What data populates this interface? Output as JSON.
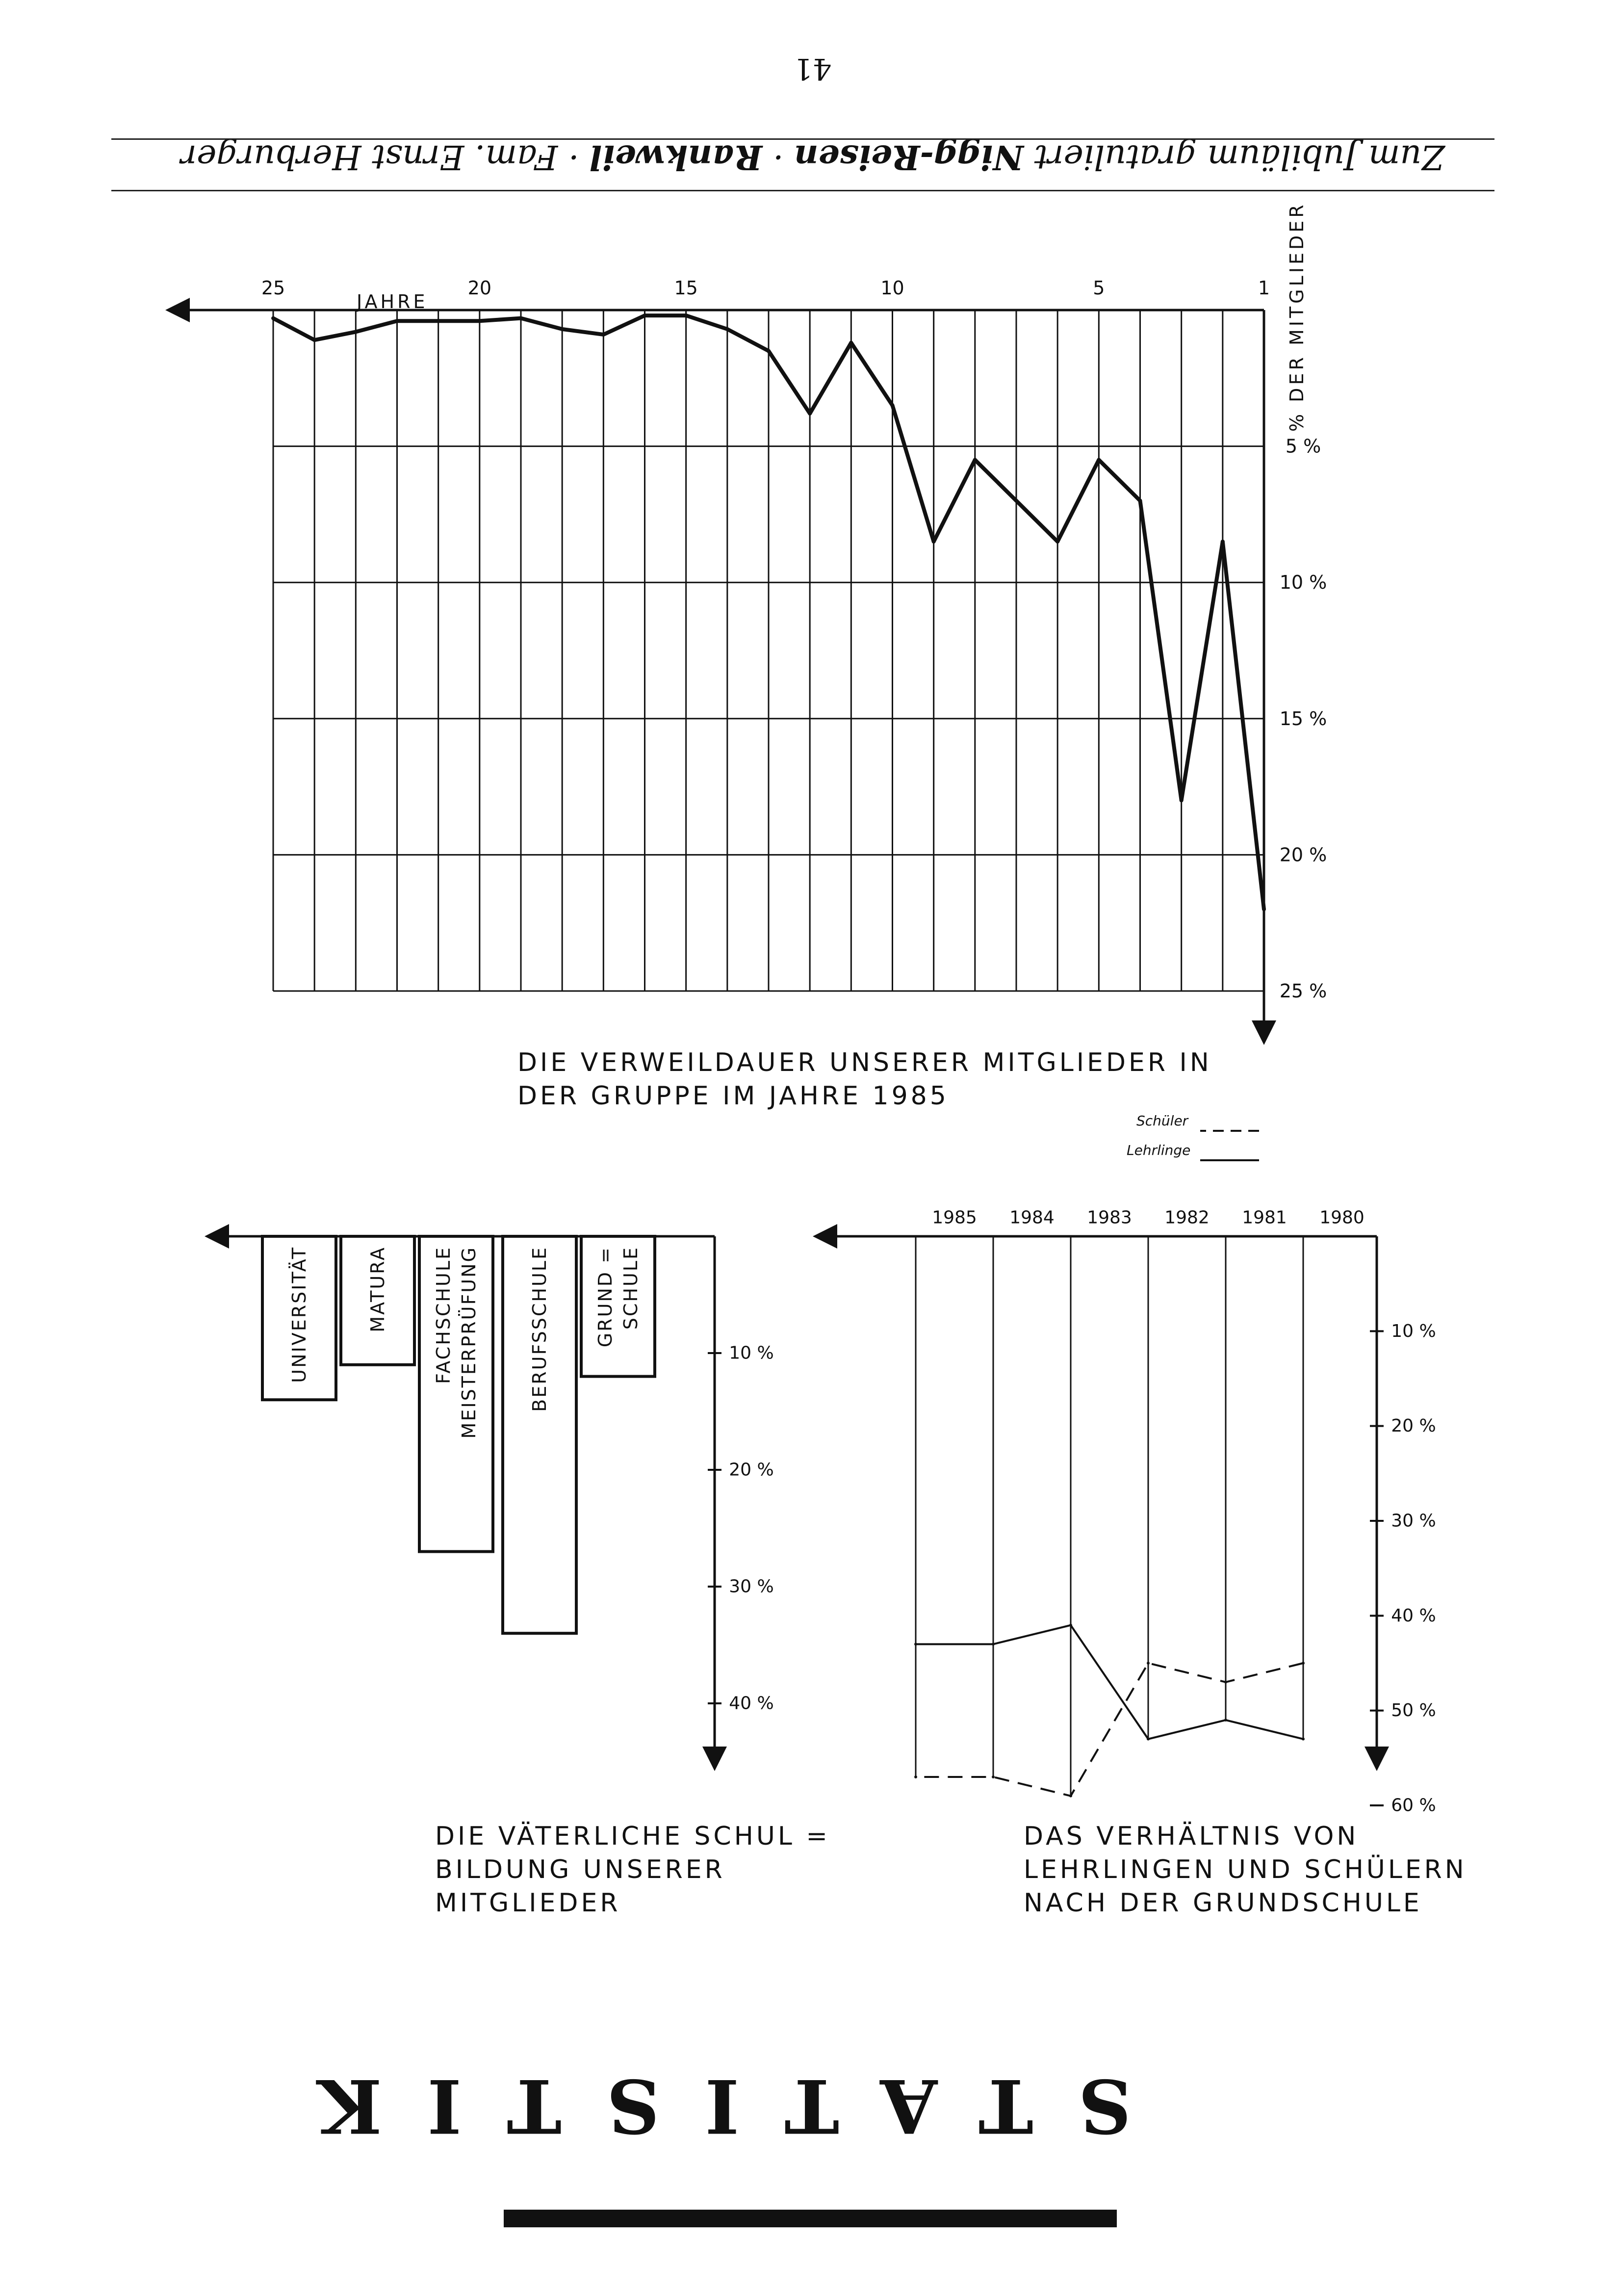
{
  "page": {
    "page_number": "41",
    "header": {
      "part1": "Zum Jubiläum gratuliert ",
      "sponsor": "Nigg-Reisen",
      "separator1": " · ",
      "town": "Rankweil",
      "separator2": " · ",
      "part2": "Fam. Ernst Herburger"
    },
    "section_title": "STATISTIK"
  },
  "chart_data": [
    {
      "type": "line",
      "title_lines": [
        "DIE VERWEILDAUER UNSERER MITGLIEDER IN",
        "DER GRUPPE IM JAHRE 1985"
      ],
      "xlabel": "JAHRE",
      "ylabel": "% DER MITGLIEDER",
      "x_ticks": [
        "1",
        "5",
        "10",
        "15",
        "20",
        "25"
      ],
      "y_ticks": [
        "5 %",
        "10 %",
        "15 %",
        "20 %",
        "25 %"
      ],
      "xlim": [
        1,
        25
      ],
      "ylim": [
        0,
        25
      ],
      "grid": true,
      "x": [
        1,
        2,
        3,
        4,
        5,
        6,
        7,
        8,
        9,
        10,
        11,
        12,
        13,
        14,
        15,
        16,
        17,
        18,
        19,
        20,
        21,
        22,
        23,
        24,
        25
      ],
      "values": [
        22,
        8.5,
        18,
        7,
        5.5,
        8.5,
        7,
        5.5,
        8.5,
        3.5,
        1.2,
        3.8,
        1.5,
        0.7,
        0.2,
        0.2,
        0.9,
        0.7,
        0.3,
        0.4,
        0.4,
        0.4,
        0.8,
        1.1,
        0.3
      ]
    },
    {
      "type": "line",
      "title_lines": [
        "DAS VERHÄLTNIS VON",
        "LEHRLINGEN UND SCHÜLERN",
        "NACH DER GRUNDSCHULE"
      ],
      "categories": [
        "1980",
        "1981",
        "1982",
        "1983",
        "1984",
        "1985"
      ],
      "y_ticks": [
        "10 %",
        "20 %",
        "30 %",
        "40 %",
        "50 %",
        "60 %"
      ],
      "ylim": [
        0,
        60
      ],
      "legend": "top-right",
      "series": [
        {
          "name": "Lehrlinge",
          "style": "solid",
          "values": [
            53,
            51,
            53,
            41,
            43,
            43
          ]
        },
        {
          "name": "Schüler",
          "style": "dashed",
          "values": [
            45,
            47,
            45,
            59,
            57,
            57
          ]
        }
      ]
    },
    {
      "type": "bar",
      "title_lines": [
        "DIE VÄTERLICHE SCHUL =",
        "BILDUNG UNSERER",
        "MITGLIEDER"
      ],
      "categories": [
        [
          "GRUND =",
          "SCHULE"
        ],
        [
          "BERUFSSCHULE"
        ],
        [
          "FACHSCHULE",
          "MEISTERPRÜFUNG"
        ],
        [
          "MATURA"
        ],
        [
          "UNIVERSITÄT"
        ]
      ],
      "y_ticks": [
        "10 %",
        "20 %",
        "30 %",
        "40 %"
      ],
      "ylim": [
        0,
        40
      ],
      "values": [
        12,
        34,
        27,
        11,
        14
      ]
    }
  ]
}
